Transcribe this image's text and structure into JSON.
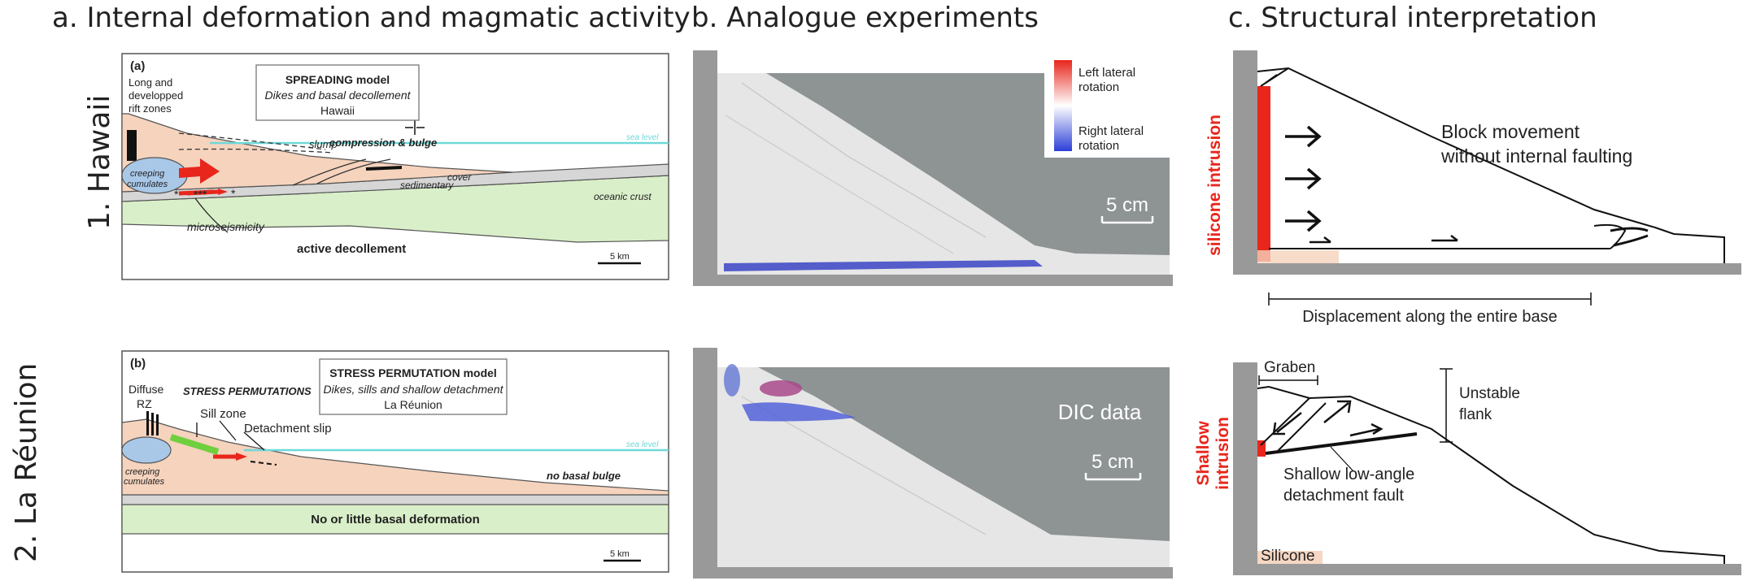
{
  "columns": {
    "a": "a. Internal deformation and magmatic activity",
    "b": "b. Analogue experiments",
    "c": "c. Structural interpretation"
  },
  "rows": {
    "r1": "1. Hawaii",
    "r2": "2. La Réunion"
  },
  "panel_a1": {
    "tag": "(a)",
    "model_title": "SPREADING model",
    "model_sub": "Dikes and basal decollement",
    "model_loc": "Hawaii",
    "rift_l1": "Long and",
    "rift_l2": "developped",
    "rift_l3": "rift zones",
    "sea_level": "sea level",
    "slump": "slump",
    "compression": "compression & bulge",
    "creeping_1": "creeping",
    "creeping_2": "cumulates",
    "stars_a": "***",
    "star_b": "*",
    "star_c": "*",
    "sed_1": "sedimentary",
    "sed_2": "cover",
    "oceanic": "oceanic crust",
    "micro": "microseismicity",
    "decol": "active decollement",
    "scale": "5 km"
  },
  "panel_a2": {
    "tag": "(b)",
    "model_title": "STRESS PERMUTATION model",
    "model_sub": "Dikes, sills and shallow detachment",
    "model_loc": "La Réunion",
    "diffuse": "Diffuse",
    "rz": "RZ",
    "stress": "STRESS PERMUTATIONS",
    "sill": "Sill zone",
    "detach": "Detachment slip",
    "sea_level": "sea level",
    "creeping_1": "creeping",
    "creeping_2": "cumulates",
    "no_bulge": "no basal bulge",
    "no_def": "No or little basal deformation",
    "scale": "5 km"
  },
  "panel_b1": {
    "legend_left_1": "Left lateral",
    "legend_left_2": "rotation",
    "legend_right_1": "Right lateral",
    "legend_right_2": "rotation",
    "scale": "5 cm"
  },
  "panel_b2": {
    "dic": "DIC data",
    "scale": "5 cm"
  },
  "panel_c1": {
    "side_label": "silicone intrusion",
    "block_1": "Block movement",
    "block_2": "without internal faulting",
    "displacement": "Displacement along the entire base"
  },
  "panel_c2": {
    "side_1": "Shallow",
    "side_2": "intrusion",
    "graben": "Graben",
    "unstable_1": "Unstable",
    "unstable_2": "flank",
    "fault_1": "Shallow low-angle",
    "fault_2": "detachment fault",
    "silicone": "Silicone"
  },
  "colors": {
    "edifice": "#f5d3bd",
    "crust": "#d9efc9",
    "sediment": "#d6d6d6",
    "magma": "#a9c8e8",
    "sea": "#6fd8d8",
    "red": "#e8261c",
    "green": "#6fcf3f",
    "box": "#999999",
    "sand": "#e6e6e6",
    "backdrop": "#8e9394"
  }
}
